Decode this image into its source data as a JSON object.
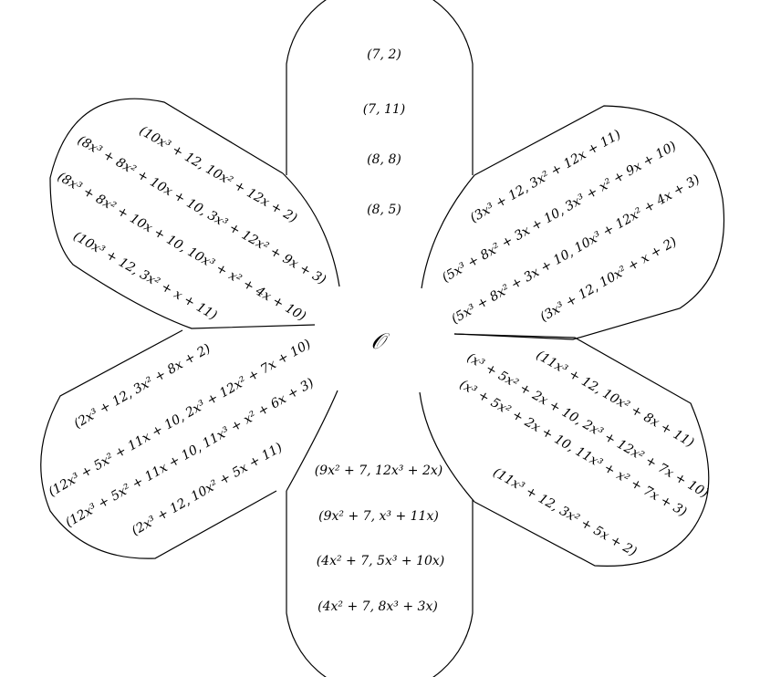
{
  "center_label": "𝒪",
  "petals": {
    "top": [
      "(7, 2)",
      "(7, 11)",
      "(8, 8)",
      "(8, 5)"
    ],
    "upper_left": [
      "(10x³ + 12, 10x² + 12x + 2)",
      "(8x³ + 8x² + 10x + 10, 3x³ + 12x² + 9x + 3)",
      "(8x³ + 8x² + 10x + 10, 10x³ + x² + 4x + 10)",
      "(10x³ + 12, 3x² + x + 11)"
    ],
    "upper_right": [
      "(3x³ + 12, 3x² + 12x + 11)",
      "(5x³ + 8x² + 3x + 10, 3x³ + x² + 9x + 10)",
      "(5x³ + 8x² + 3x + 10, 10x³ + 12x² + 4x + 3)",
      "(3x³ + 12, 10x² + x + 2)"
    ],
    "lower_left": [
      "(2x³ + 12, 3x² + 8x + 2)",
      "(12x³ + 5x² + 11x + 10, 2x³ + 12x² + 7x + 10)",
      "(12x³ + 5x² + 11x + 10, 11x³ + x² + 6x + 3)",
      "(2x³ + 12, 10x² + 5x + 11)"
    ],
    "lower_right": [
      "(11x³ + 12, 10x² + 8x + 11)",
      "(x³ + 5x² + 2x + 10, 2x³ + 12x² + 7x + 10)",
      "(x³ + 5x² + 2x + 10, 11x³ + x² + 7x + 3)",
      "(11x³ + 12, 3x² + 5x + 2)"
    ],
    "bottom": [
      "(9x² + 7, 12x³ + 2x)",
      "(9x² + 7, x³ + 11x)",
      "(4x² + 7, 5x³ + 10x)",
      "(4x² + 7, 8x³ + 3x)"
    ]
  }
}
